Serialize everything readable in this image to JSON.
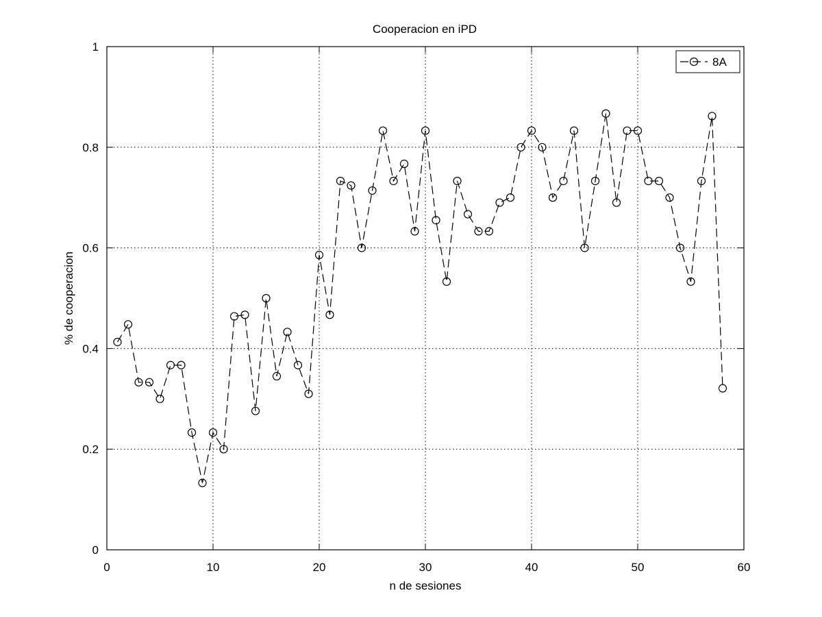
{
  "chart_data": {
    "type": "line",
    "title": "Cooperacion en iPD",
    "xlabel": "n de sesiones",
    "ylabel": "% de cooperacion",
    "xlim": [
      0,
      60
    ],
    "ylim": [
      0,
      1
    ],
    "x_ticks": [
      0,
      10,
      20,
      30,
      40,
      50,
      60
    ],
    "y_ticks": [
      0,
      0.2,
      0.4,
      0.6,
      0.8,
      1
    ],
    "x_tick_labels": [
      "0",
      "10",
      "20",
      "30",
      "40",
      "50",
      "60"
    ],
    "y_tick_labels": [
      "0",
      "0.2",
      "0.4",
      "0.6",
      "0.8",
      "1"
    ],
    "grid": true,
    "legend_position": "top-right",
    "series": [
      {
        "name": "8A",
        "color": "#000000",
        "line_style": "dashed",
        "marker": "circle",
        "x": [
          1,
          2,
          3,
          4,
          5,
          6,
          7,
          8,
          9,
          10,
          11,
          12,
          13,
          14,
          15,
          16,
          17,
          18,
          19,
          20,
          21,
          22,
          23,
          24,
          25,
          26,
          27,
          28,
          29,
          30,
          31,
          32,
          33,
          34,
          35,
          36,
          37,
          38,
          39,
          40,
          41,
          42,
          43,
          44,
          45,
          46,
          47,
          48,
          49,
          50,
          51,
          52,
          53,
          54,
          55,
          56,
          57,
          58
        ],
        "values": [
          0.413,
          0.448,
          0.333,
          0.333,
          0.3,
          0.367,
          0.367,
          0.233,
          0.133,
          0.233,
          0.2,
          0.464,
          0.467,
          0.276,
          0.5,
          0.345,
          0.433,
          0.367,
          0.31,
          0.586,
          0.467,
          0.733,
          0.724,
          0.6,
          0.714,
          0.833,
          0.733,
          0.767,
          0.633,
          0.833,
          0.655,
          0.533,
          0.733,
          0.667,
          0.633,
          0.633,
          0.69,
          0.7,
          0.8,
          0.833,
          0.8,
          0.7,
          0.733,
          0.833,
          0.6,
          0.733,
          0.867,
          0.69,
          0.833,
          0.833,
          0.733,
          0.733,
          0.7,
          0.6,
          0.533,
          0.733,
          0.862,
          0.321
        ]
      }
    ]
  }
}
